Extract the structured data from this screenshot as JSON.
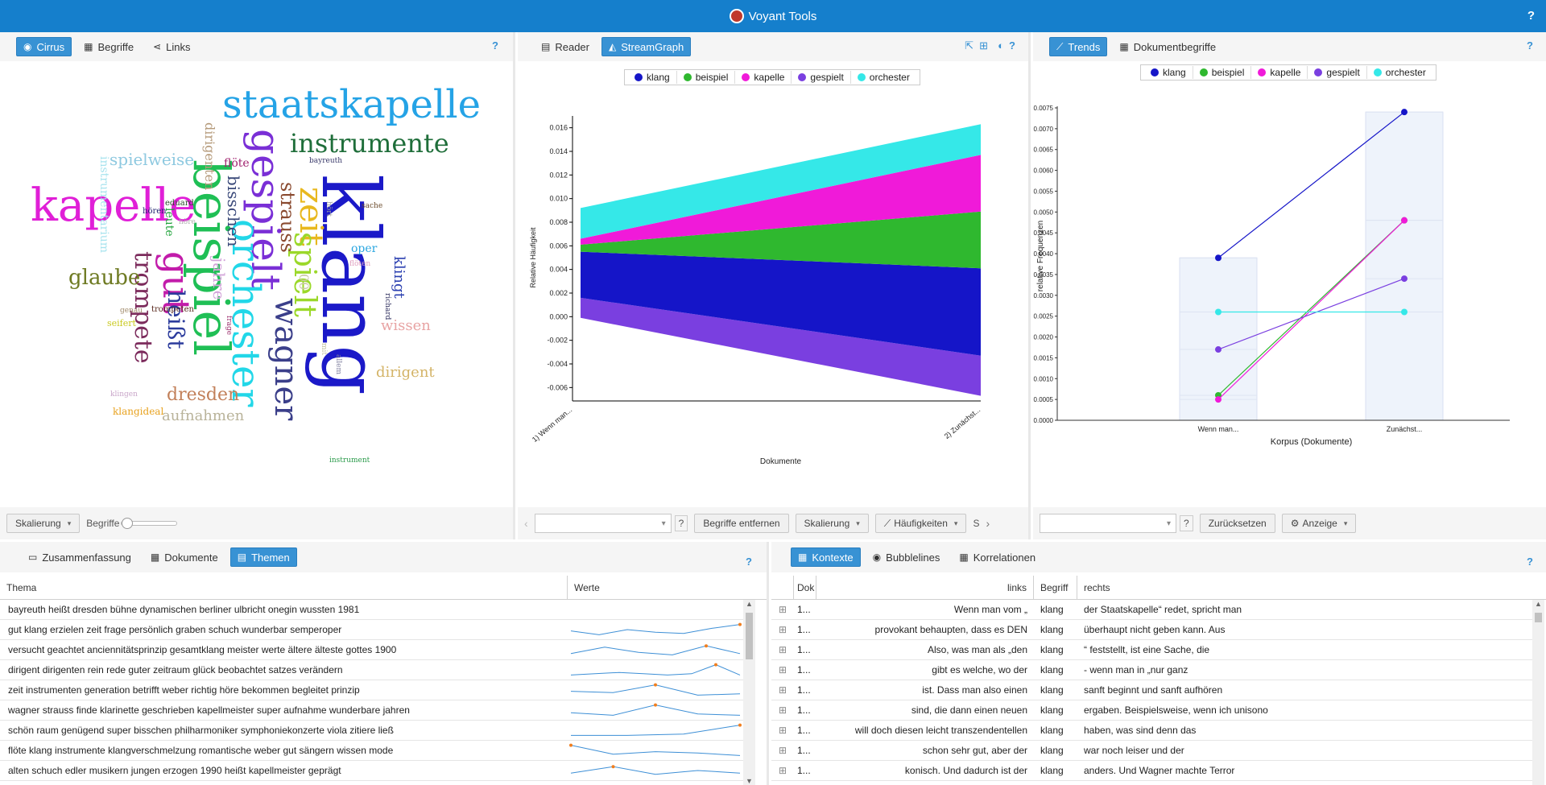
{
  "app": {
    "title": "Voyant Tools",
    "help": "?"
  },
  "cirrus_panel": {
    "tabs": [
      {
        "label": "Cirrus",
        "icon": "eye-icon"
      },
      {
        "label": "Begriffe",
        "icon": "table-icon"
      },
      {
        "label": "Links",
        "icon": "share-icon"
      }
    ],
    "help": "?",
    "words": [
      {
        "text": "staatskapelle",
        "color": "#25a3e6"
      },
      {
        "text": "klang",
        "color": "#1b19c8"
      },
      {
        "text": "kapelle",
        "color": "#e01fd7"
      },
      {
        "text": "beispiel",
        "color": "#1fbf55"
      },
      {
        "text": "gespielt",
        "color": "#7a2fd6"
      },
      {
        "text": "orchester",
        "color": "#22d7e8"
      },
      {
        "text": "instrumente",
        "color": "#1f6e3a"
      },
      {
        "text": "zeit",
        "color": "#e8b81f"
      },
      {
        "text": "spielt",
        "color": "#9bd82a"
      },
      {
        "text": "wagner",
        "color": "#3b3f8a"
      },
      {
        "text": "gut",
        "color": "#c21caa"
      },
      {
        "text": "heißt",
        "color": "#2b3b9c"
      },
      {
        "text": "trompete",
        "color": "#7c2b5c"
      },
      {
        "text": "glaube",
        "color": "#6e7a22"
      },
      {
        "text": "spielweise",
        "color": "#8ec9e0"
      },
      {
        "text": "dresden",
        "color": "#c2805a"
      },
      {
        "text": "aufnahmen",
        "color": "#b9b39a"
      },
      {
        "text": "strauss",
        "color": "#8a4a2f"
      },
      {
        "text": "bisschen",
        "color": "#3b4a7a"
      },
      {
        "text": "jahre",
        "color": "#d2a4d9"
      },
      {
        "text": "dirigenten",
        "color": "#b59a7a"
      },
      {
        "text": "wissen",
        "color": "#e8a4a4"
      },
      {
        "text": "dirigent",
        "color": "#d4b468"
      },
      {
        "text": "klingt",
        "color": "#2a3fb0"
      },
      {
        "text": "instrumentarium",
        "color": "#a7e3ee"
      },
      {
        "text": "flöte",
        "color": "#a0226e"
      },
      {
        "text": "klangideal",
        "color": "#e8a21f"
      },
      {
        "text": "oper",
        "color": "#2aa6e0"
      },
      {
        "text": "00",
        "color": "#c9c9a6"
      },
      {
        "text": "leute",
        "color": "#1fa33a"
      },
      {
        "text": "eduard",
        "color": "#2a4a2a"
      },
      {
        "text": "hören",
        "color": "#1f1f6e"
      },
      {
        "text": "seifert",
        "color": "#c9c91f"
      },
      {
        "text": "trompeten",
        "color": "#5a2a1f"
      },
      {
        "text": "genau",
        "color": "#a08a6a"
      },
      {
        "text": "klingen",
        "color": "#c9a6c9"
      },
      {
        "text": "instrument",
        "color": "#2a9a4a"
      },
      {
        "text": "bayreuth",
        "color": "#3a3a6a"
      },
      {
        "text": "sache",
        "color": "#6a4a2a"
      },
      {
        "text": "höre",
        "color": "#b0b0b0"
      },
      {
        "text": "flöten",
        "color": "#e0a0c0"
      },
      {
        "text": "richard",
        "color": "#2a2a5a"
      },
      {
        "text": "frage",
        "color": "#9a2a6a"
      },
      {
        "text": "hört",
        "color": "#a0a0a0"
      },
      {
        "text": "allem",
        "color": "#8080a0"
      },
      {
        "text": "mit",
        "color": "#c0c0a0"
      }
    ],
    "bottom": {
      "scaling_label": "Skalierung",
      "terms_label": "Begriffe"
    }
  },
  "stream_panel": {
    "tabs": [
      {
        "label": "Reader",
        "icon": "document-icon"
      },
      {
        "label": "StreamGraph",
        "icon": "area-chart-icon"
      }
    ],
    "help": "?",
    "bottom": {
      "remove_label": "Begriffe entfernen",
      "scaling_label": "Skalierung",
      "freq_label": "Häufigkeiten",
      "help": "?",
      "s": "S"
    }
  },
  "trends_panel": {
    "tabs": [
      {
        "label": "Trends",
        "icon": "line-chart-icon"
      },
      {
        "label": "Dokumentbegriffe",
        "icon": "table-icon"
      }
    ],
    "help": "?",
    "bottom": {
      "reset_label": "Zurücksetzen",
      "display_label": "Anzeige",
      "help": "?"
    }
  },
  "legend": [
    {
      "name": "klang",
      "color": "#1515c8"
    },
    {
      "name": "beispiel",
      "color": "#2fb82f"
    },
    {
      "name": "kapelle",
      "color": "#f01ad9"
    },
    {
      "name": "gespielt",
      "color": "#7a3fe0"
    },
    {
      "name": "orchester",
      "color": "#35e8e8"
    }
  ],
  "chart_data": [
    {
      "type": "area",
      "title": "",
      "xlabel": "Dokumente",
      "ylabel": "Relative Häufigkeit",
      "categories": [
        "1) Wenn man...",
        "2) Zunächst..."
      ],
      "ylim": [
        -0.007,
        0.017
      ],
      "yticks": [
        "0.016",
        "0.014",
        "0.012",
        "0.010",
        "0.008",
        "0.006",
        "0.004",
        "0.002",
        "0.000",
        "-0.002",
        "-0.004",
        "-0.006"
      ],
      "series": [
        {
          "name": "gespielt",
          "values": [
            0.0017,
            0.0034
          ]
        },
        {
          "name": "klang",
          "values": [
            0.0039,
            0.0074
          ]
        },
        {
          "name": "beispiel",
          "values": [
            0.0006,
            0.0048
          ]
        },
        {
          "name": "kapelle",
          "values": [
            0.0005,
            0.0048
          ]
        },
        {
          "name": "orchester",
          "values": [
            0.0026,
            0.0026
          ]
        }
      ]
    },
    {
      "type": "line",
      "title": "",
      "xlabel": "Korpus (Dokumente)",
      "ylabel": "relative Frequenzen",
      "categories": [
        "Wenn man...",
        "Zunächst..."
      ],
      "ylim": [
        0,
        0.0075
      ],
      "yticks": [
        "0.0075",
        "0.0070",
        "0.0065",
        "0.0060",
        "0.0055",
        "0.0050",
        "0.0045",
        "0.0040",
        "0.0035",
        "0.0030",
        "0.0025",
        "0.0020",
        "0.0015",
        "0.0010",
        "0.0005",
        "0.0000"
      ],
      "series": [
        {
          "name": "klang",
          "values": [
            0.0039,
            0.0074
          ]
        },
        {
          "name": "beispiel",
          "values": [
            0.0006,
            0.0048
          ]
        },
        {
          "name": "kapelle",
          "values": [
            0.0005,
            0.0048
          ]
        },
        {
          "name": "gespielt",
          "values": [
            0.0017,
            0.0034
          ]
        },
        {
          "name": "orchester",
          "values": [
            0.0026,
            0.0026
          ]
        }
      ]
    }
  ],
  "topics_panel": {
    "tabs": [
      {
        "label": "Zusammenfassung",
        "icon": "summary-icon"
      },
      {
        "label": "Dokumente",
        "icon": "table-icon"
      },
      {
        "label": "Themen",
        "icon": "topics-icon"
      }
    ],
    "help": "?",
    "columns": [
      "Thema",
      "Werte"
    ],
    "rows": [
      {
        "topic": "bayreuth heißt dresden bühne dynamischen berliner ulbricht onegin wussten 1981",
        "spark": []
      },
      {
        "topic": "gut klang erzielen zeit frage persönlich graben schuch wunderbar semperoper",
        "spark": [
          0.4,
          0.1,
          0.5,
          0.3,
          0.2,
          0.6,
          0.9
        ]
      },
      {
        "topic": "versucht geachtet anciennitätsprinzip gesamtklang meister werte ältere älteste gottes 1900",
        "spark": [
          0.2,
          0.7,
          0.3,
          0.1,
          0.8,
          0.2
        ]
      },
      {
        "topic": "dirigent dirigenten rein rede guter zeitraum glück beobachtet satzes verändern",
        "spark": [
          0.1,
          0.2,
          0.3,
          0.2,
          0.1,
          0.2,
          0.9,
          0.1
        ]
      },
      {
        "topic": "zeit instrumenten generation betrifft weber richtig höre bekommen begleitet prinzip",
        "spark": [
          0.4,
          0.3,
          0.9,
          0.1,
          0.2
        ]
      },
      {
        "topic": "wagner strauss finde klarinette geschrieben kapellmeister super aufnahme wunderbare jahren",
        "spark": [
          0.3,
          0.1,
          0.9,
          0.2,
          0.1
        ]
      },
      {
        "topic": "schön raum genügend super bisschen philharmoniker symphoniekonzerte viola zitiere ließ",
        "spark": [
          0.1,
          0.1,
          0.2,
          0.9
        ]
      },
      {
        "topic": "flöte klang instrumente klangverschmelzung romantische weber gut sängern wissen mode",
        "spark": [
          0.9,
          0.2,
          0.4,
          0.3,
          0.1
        ]
      },
      {
        "topic": "alten schuch edler musikern jungen erzogen 1990 heißt kapellmeister geprägt",
        "spark": [
          0.3,
          0.8,
          0.2,
          0.5,
          0.3
        ]
      }
    ]
  },
  "context_panel": {
    "tabs": [
      {
        "label": "Kontexte",
        "icon": "table-icon"
      },
      {
        "label": "Bubblelines",
        "icon": "eye-icon"
      },
      {
        "label": "Korrelationen",
        "icon": "table-icon"
      }
    ],
    "help": "?",
    "columns": [
      "Dok",
      "links",
      "Begriff",
      "rechts"
    ],
    "rows": [
      {
        "doc": "1...",
        "left": "Wenn man vom „",
        "term": "klang",
        "right": "der Staatskapelle“ redet, spricht man"
      },
      {
        "doc": "1...",
        "left": "provokant behaupten, dass es DEN",
        "term": "klang",
        "right": "überhaupt nicht geben kann. Aus"
      },
      {
        "doc": "1...",
        "left": "Also, was man als „den",
        "term": "klang",
        "right": "“ feststellt, ist eine Sache, die"
      },
      {
        "doc": "1...",
        "left": "gibt es welche, wo der",
        "term": "klang",
        "right": "- wenn man in „nur ganz"
      },
      {
        "doc": "1...",
        "left": "ist. Dass man also einen",
        "term": "klang",
        "right": "sanft beginnt und sanft aufhören"
      },
      {
        "doc": "1...",
        "left": "sind, die dann einen neuen",
        "term": "klang",
        "right": "ergaben. Beispielsweise, wenn ich unisono"
      },
      {
        "doc": "1...",
        "left": "will doch diesen leicht transzendentellen",
        "term": "klang",
        "right": "haben, was sind denn das"
      },
      {
        "doc": "1...",
        "left": "schon sehr gut, aber der",
        "term": "klang",
        "right": "war noch leiser und der"
      },
      {
        "doc": "1...",
        "left": "konisch. Und dadurch ist der",
        "term": "klang",
        "right": "anders. Und Wagner machte Terror"
      }
    ]
  }
}
